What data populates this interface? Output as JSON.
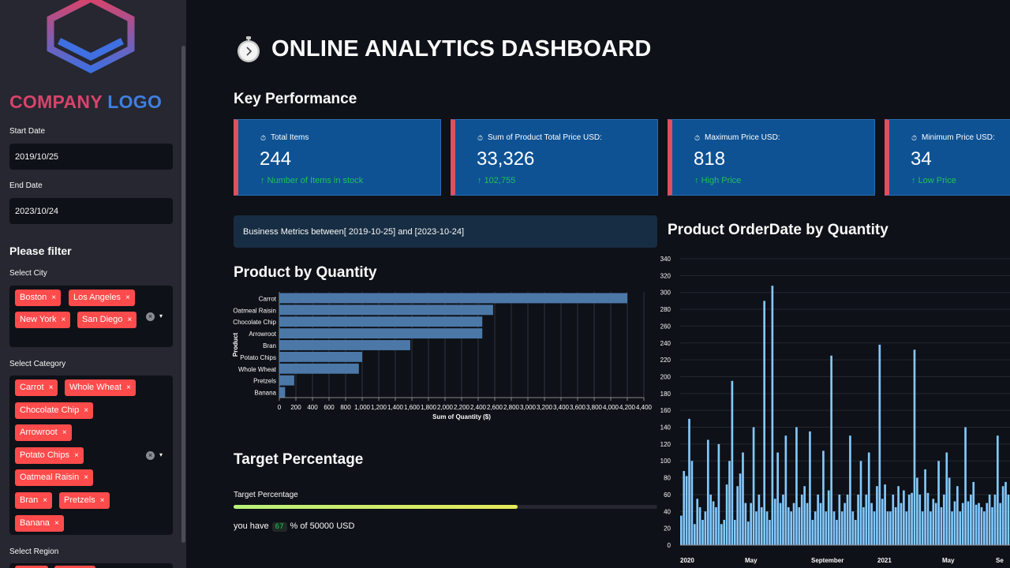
{
  "sidebar": {
    "logo": {
      "word1": "COMPANY",
      "word2": "LOGO"
    },
    "start_date": {
      "label": "Start Date",
      "value": "2019/10/25"
    },
    "end_date": {
      "label": "End Date",
      "value": "2023/10/24"
    },
    "filter_heading": "Please filter",
    "city": {
      "label": "Select City",
      "tags": [
        "Boston",
        "Los Angeles",
        "New York",
        "San Diego"
      ]
    },
    "category": {
      "label": "Select Category",
      "tags": [
        "Carrot",
        "Whole Wheat",
        "Chocolate Chip",
        "Arrowroot",
        "Potato Chips",
        "Oatmeal Raisin",
        "Bran",
        "Pretzels",
        "Banana"
      ]
    },
    "region": {
      "label": "Select Region"
    },
    "tag_remove": "×",
    "clear_icon": "×",
    "caret_icon": "▾"
  },
  "header": {
    "title": "ONLINE ANALYTICS DASHBOARD"
  },
  "key_performance": {
    "heading": "Key Performance",
    "cards": [
      {
        "title": "Total Items",
        "value": "244",
        "delta": "Number of Items in stock"
      },
      {
        "title": "Sum of Product Total Price USD:",
        "value": "33,326",
        "delta": "102,755"
      },
      {
        "title": "Maximum Price USD:",
        "value": "818",
        "delta": "High Price"
      },
      {
        "title": "Minimum Price USD:",
        "value": "34",
        "delta": "Low Price"
      }
    ],
    "card_icon": "⏱",
    "delta_icon": "↑"
  },
  "info_banner": "Business Metrics between[ 2019-10-25] and [2023-10-24]",
  "target": {
    "heading": "Target Percentage",
    "label": "Target Percentage",
    "percent": 67,
    "text_before": "you have",
    "value": "67",
    "text_after": "% of 50000 USD"
  },
  "chart_data": [
    {
      "type": "bar",
      "orientation": "horizontal",
      "title": "Product by Quantity",
      "categories": [
        "Carrot",
        "Oatmeal Raisin",
        "Chocolate Chip",
        "Arrowroot",
        "Bran",
        "Potato Chips",
        "Whole Wheat",
        "Pretzels",
        "Banana"
      ],
      "values": [
        4200,
        2580,
        2450,
        2450,
        1580,
        1000,
        960,
        180,
        70
      ],
      "xlabel": "Sum of Quantity ($)",
      "ylabel": "Product",
      "xlim": [
        0,
        4400
      ],
      "xticks": [
        "0",
        "200",
        "400",
        "600",
        "800",
        "1,000",
        "1,200",
        "1,400",
        "1,600",
        "1,800",
        "2,000",
        "2,200",
        "2,400",
        "2,600",
        "2,800",
        "3,000",
        "3,200",
        "3,400",
        "3,600",
        "3,800",
        "4,000",
        "4,200",
        "4,400"
      ],
      "color": "#4c78a8"
    },
    {
      "type": "bar",
      "title": "Product OrderDate by Quantity",
      "ylim": [
        0,
        340
      ],
      "yticks": [
        "0",
        "20",
        "40",
        "60",
        "80",
        "100",
        "120",
        "140",
        "160",
        "180",
        "200",
        "220",
        "240",
        "260",
        "280",
        "300",
        "320",
        "340"
      ],
      "xticks": [
        "2020",
        "May",
        "September",
        "2021",
        "May",
        "Se"
      ],
      "values": [
        35,
        88,
        82,
        150,
        100,
        25,
        55,
        45,
        30,
        40,
        125,
        60,
        52,
        45,
        120,
        25,
        30,
        72,
        100,
        195,
        30,
        70,
        85,
        110,
        50,
        28,
        50,
        140,
        40,
        60,
        45,
        290,
        40,
        30,
        308,
        55,
        110,
        50,
        60,
        130,
        45,
        40,
        50,
        140,
        45,
        60,
        70,
        50,
        135,
        30,
        40,
        60,
        50,
        112,
        40,
        65,
        225,
        40,
        30,
        60,
        40,
        50,
        60,
        130,
        40,
        30,
        60,
        100,
        45,
        60,
        110,
        50,
        40,
        70,
        238,
        55,
        72,
        40,
        40,
        60,
        45,
        70,
        50,
        65,
        40,
        60,
        62,
        232,
        80,
        60,
        40,
        90,
        62,
        40,
        55,
        50,
        100,
        45,
        60,
        110,
        80,
        40,
        52,
        70,
        40,
        50,
        140,
        52,
        60,
        75,
        48,
        50,
        45,
        40,
        50,
        60,
        45,
        60,
        130,
        50,
        70,
        75,
        60
      ],
      "color": "#83c9ff"
    }
  ]
}
